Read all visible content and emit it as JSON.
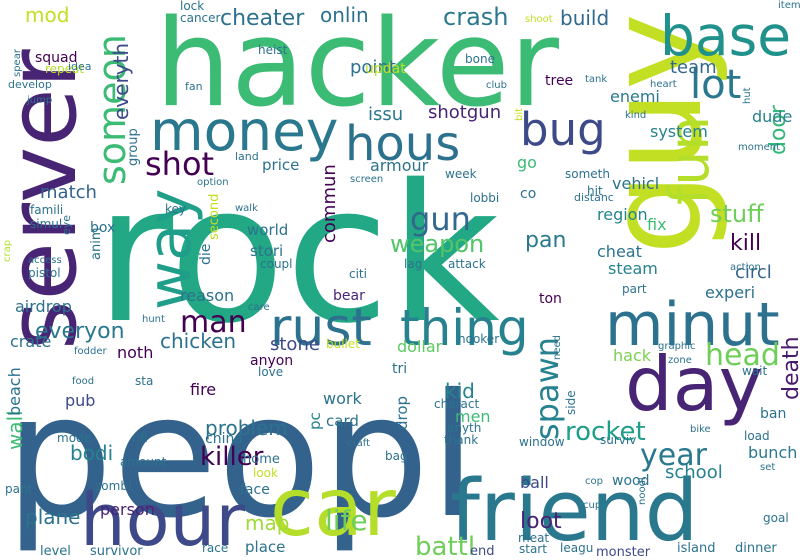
{
  "words": [
    {
      "text": "peopl",
      "color": "#33638d"
    },
    {
      "text": "rock",
      "color": "#22a884"
    },
    {
      "text": "hacker",
      "color": "#3cbb75"
    },
    {
      "text": "guy",
      "color": "#c2df23"
    },
    {
      "text": "server",
      "color": "#482475"
    },
    {
      "text": "car",
      "color": "#b5de2b"
    },
    {
      "text": "friend",
      "color": "#2a788e"
    },
    {
      "text": "hour",
      "color": "#3e4989"
    },
    {
      "text": "day",
      "color": "#482475"
    },
    {
      "text": "money",
      "color": "#2a788e"
    },
    {
      "text": "base",
      "color": "#21918c"
    },
    {
      "text": "minut",
      "color": "#2c728e"
    },
    {
      "text": "hous",
      "color": "#2c728e"
    },
    {
      "text": "bug",
      "color": "#3e4989"
    },
    {
      "text": "fun",
      "color": "#b5de2b"
    },
    {
      "text": "lot",
      "color": "#2a788e"
    },
    {
      "text": "way",
      "color": "#1f9e89"
    },
    {
      "text": "rust",
      "color": "#2c728e"
    },
    {
      "text": "thing",
      "color": "#26828e"
    },
    {
      "text": "someon",
      "color": "#3cbb75"
    },
    {
      "text": "shot",
      "color": "#440154"
    },
    {
      "text": "gun",
      "color": "#31688e"
    },
    {
      "text": "man",
      "color": "#440154"
    },
    {
      "text": "head",
      "color": "#6ece58"
    },
    {
      "text": "year",
      "color": "#2a788e"
    },
    {
      "text": "spawn",
      "color": "#26828e"
    },
    {
      "text": "life",
      "color": "#6ece58"
    },
    {
      "text": "weapon",
      "color": "#52c569"
    },
    {
      "text": "rocket",
      "color": "#1f9e89"
    },
    {
      "text": "killer",
      "color": "#440154"
    },
    {
      "text": "everyon",
      "color": "#2a788e"
    },
    {
      "text": "crash",
      "color": "#2a788e"
    },
    {
      "text": "cheater",
      "color": "#2c728e"
    },
    {
      "text": "onlin",
      "color": "#2c728e"
    },
    {
      "text": "build",
      "color": "#31688e"
    },
    {
      "text": "mod",
      "color": "#c2df23"
    },
    {
      "text": "everyth",
      "color": "#3e4989"
    },
    {
      "text": "stuff",
      "color": "#6ece58"
    },
    {
      "text": "kill",
      "color": "#440154"
    },
    {
      "text": "circl",
      "color": "#33638d"
    },
    {
      "text": "death",
      "color": "#481a6c"
    },
    {
      "text": "chicken",
      "color": "#2c728e"
    },
    {
      "text": "problem",
      "color": "#2c728e"
    },
    {
      "text": "battl",
      "color": "#6ece58"
    },
    {
      "text": "loot",
      "color": "#482475"
    },
    {
      "text": "map",
      "color": "#a0da39"
    },
    {
      "text": "match",
      "color": "#33638d"
    },
    {
      "text": "commun",
      "color": "#440154"
    },
    {
      "text": "pan",
      "color": "#2a788e"
    },
    {
      "text": "shotgun",
      "color": "#482475"
    },
    {
      "text": "school",
      "color": "#26828e"
    },
    {
      "text": "bunch",
      "color": "#2a788e"
    },
    {
      "text": "stone",
      "color": "#3e4989"
    },
    {
      "text": "bodi",
      "color": "#26828e"
    },
    {
      "text": "wall",
      "color": "#3cbb75"
    },
    {
      "text": "kid",
      "color": "#26828e"
    },
    {
      "text": "plane",
      "color": "#2c728e"
    },
    {
      "text": "door",
      "color": "#35b779"
    },
    {
      "text": "team",
      "color": "#31688e"
    },
    {
      "text": "point",
      "color": "#2c728e"
    },
    {
      "text": "issu",
      "color": "#2a788e"
    },
    {
      "text": "dude",
      "color": "#26828e"
    },
    {
      "text": "enemi",
      "color": "#2a788e"
    },
    {
      "text": "system",
      "color": "#26828e"
    },
    {
      "text": "armour",
      "color": "#2c728e"
    },
    {
      "text": "vehicl",
      "color": "#2c728e"
    },
    {
      "text": "cheat",
      "color": "#2c728e"
    },
    {
      "text": "steam",
      "color": "#26828e"
    },
    {
      "text": "stori",
      "color": "#2c728e"
    },
    {
      "text": "world",
      "color": "#2c728e"
    },
    {
      "text": "price",
      "color": "#2c728e"
    },
    {
      "text": "reason",
      "color": "#2c728e"
    },
    {
      "text": "airdrop",
      "color": "#2c728e"
    },
    {
      "text": "crate",
      "color": "#2c728e"
    },
    {
      "text": "noth",
      "color": "#440154"
    },
    {
      "text": "pub",
      "color": "#3e4989"
    },
    {
      "text": "person",
      "color": "#482475"
    },
    {
      "text": "dollar",
      "color": "#5ec962"
    },
    {
      "text": "hack",
      "color": "#7ad151"
    },
    {
      "text": "fire",
      "color": "#440154"
    },
    {
      "text": "work",
      "color": "#2c728e"
    },
    {
      "text": "card",
      "color": "#2c728e"
    },
    {
      "text": "pc",
      "color": "#26828e"
    },
    {
      "text": "men",
      "color": "#3cbb75"
    },
    {
      "text": "face",
      "color": "#2c728e"
    },
    {
      "text": "ball",
      "color": "#3e4989"
    },
    {
      "text": "fix",
      "color": "#3cbb75"
    },
    {
      "text": "experi",
      "color": "#2c728e"
    },
    {
      "text": "region",
      "color": "#26828e"
    },
    {
      "text": "beach",
      "color": "#2c728e"
    },
    {
      "text": "place",
      "color": "#2c728e"
    },
    {
      "text": "level",
      "color": "#2c728e"
    },
    {
      "text": "survivor",
      "color": "#2c728e"
    },
    {
      "text": "end",
      "color": "#3e4989"
    },
    {
      "text": "monster",
      "color": "#3e4989"
    },
    {
      "text": "island",
      "color": "#2c728e"
    },
    {
      "text": "dinner",
      "color": "#2c728e"
    },
    {
      "text": "drop",
      "color": "#2c728e"
    },
    {
      "text": "ban",
      "color": "#2c728e"
    },
    {
      "text": "wood",
      "color": "#2c728e"
    },
    {
      "text": "go",
      "color": "#3cbb75"
    },
    {
      "text": "bear",
      "color": "#482475"
    },
    {
      "text": "updat",
      "color": "#c2df23"
    },
    {
      "text": "die",
      "color": "#2c728e"
    },
    {
      "text": "tree",
      "color": "#440154"
    },
    {
      "text": "anyon",
      "color": "#440154"
    },
    {
      "text": "squad",
      "color": "#440154"
    },
    {
      "text": "box",
      "color": "#2c728e"
    },
    {
      "text": "group",
      "color": "#2c728e"
    },
    {
      "text": "china",
      "color": "#2c728e"
    },
    {
      "text": "home",
      "color": "#2c728e"
    },
    {
      "text": "co",
      "color": "#2c728e"
    },
    {
      "text": "ton",
      "color": "#440154"
    },
    {
      "text": "tri",
      "color": "#2c728e"
    },
    {
      "text": "second",
      "color": "#c2df23"
    },
    {
      "text": "anim",
      "color": "#2c728e"
    },
    {
      "text": "lock",
      "color": "#2c728e"
    },
    {
      "text": "cancer",
      "color": "#2c728e"
    },
    {
      "text": "shoot",
      "color": "#c2df23"
    },
    {
      "text": "item",
      "color": "#2c728e"
    },
    {
      "text": "heist",
      "color": "#2c728e"
    },
    {
      "text": "repeat",
      "color": "#b5de2b"
    },
    {
      "text": "idea",
      "color": "#2c728e"
    },
    {
      "text": "develop",
      "color": "#2c728e"
    },
    {
      "text": "spear",
      "color": "#2c728e"
    },
    {
      "text": "bone",
      "color": "#2c728e"
    },
    {
      "text": "tank",
      "color": "#2c728e"
    },
    {
      "text": "heart",
      "color": "#2c728e"
    },
    {
      "text": "hut",
      "color": "#2c728e"
    },
    {
      "text": "fan",
      "color": "#2c728e"
    },
    {
      "text": "jump",
      "color": "#2c728e"
    },
    {
      "text": "club",
      "color": "#2c728e"
    },
    {
      "text": "bit",
      "color": "#c2df23"
    },
    {
      "text": "kind",
      "color": "#2c728e"
    },
    {
      "text": "moment",
      "color": "#2c728e"
    },
    {
      "text": "land",
      "color": "#2c728e"
    },
    {
      "text": "screen",
      "color": "#2c728e"
    },
    {
      "text": "someth",
      "color": "#2c728e"
    },
    {
      "text": "week",
      "color": "#2c728e"
    },
    {
      "text": "lobbi",
      "color": "#2c728e"
    },
    {
      "text": "hit",
      "color": "#2c728e"
    },
    {
      "text": "distanc",
      "color": "#2c728e"
    },
    {
      "text": "option",
      "color": "#2c728e"
    },
    {
      "text": "key",
      "color": "#2c728e"
    },
    {
      "text": "walk",
      "color": "#2c728e"
    },
    {
      "text": "famili",
      "color": "#2c728e"
    },
    {
      "text": "simul",
      "color": "#2c728e"
    },
    {
      "text": "eye",
      "color": "#2c728e"
    },
    {
      "text": "coupl",
      "color": "#2c728e"
    },
    {
      "text": "lag",
      "color": "#2c728e"
    },
    {
      "text": "attack",
      "color": "#2c728e"
    },
    {
      "text": "citi",
      "color": "#2c728e"
    },
    {
      "text": "crap",
      "color": "#b5de2b"
    },
    {
      "text": "access",
      "color": "#2c728e"
    },
    {
      "text": "pistol",
      "color": "#2c728e"
    },
    {
      "text": "part",
      "color": "#2c728e"
    },
    {
      "text": "action",
      "color": "#2c728e"
    },
    {
      "text": "care",
      "color": "#2c728e"
    },
    {
      "text": "hunt",
      "color": "#2c728e"
    },
    {
      "text": "bullet",
      "color": "#c2df23"
    },
    {
      "text": "hooker",
      "color": "#2c728e"
    },
    {
      "text": "need",
      "color": "#2c728e"
    },
    {
      "text": "fodder",
      "color": "#2c728e"
    },
    {
      "text": "graphic",
      "color": "#2c728e"
    },
    {
      "text": "zone",
      "color": "#2c728e"
    },
    {
      "text": "food",
      "color": "#2c728e"
    },
    {
      "text": "sta",
      "color": "#2c728e"
    },
    {
      "text": "love",
      "color": "#2c728e"
    },
    {
      "text": "wait",
      "color": "#2c728e"
    },
    {
      "text": "charact",
      "color": "#2c728e"
    },
    {
      "text": "side",
      "color": "#2c728e"
    },
    {
      "text": "anyth",
      "color": "#2c728e"
    },
    {
      "text": "thank",
      "color": "#2c728e"
    },
    {
      "text": "mode",
      "color": "#2c728e"
    },
    {
      "text": "rifl",
      "color": "#2c728e"
    },
    {
      "text": "craft",
      "color": "#2c728e"
    },
    {
      "text": "load",
      "color": "#2c728e"
    },
    {
      "text": "bike",
      "color": "#2c728e"
    },
    {
      "text": "window",
      "color": "#2c728e"
    },
    {
      "text": "surviv",
      "color": "#2c728e"
    },
    {
      "text": "amount",
      "color": "#2c728e"
    },
    {
      "text": "zombi",
      "color": "#2c728e"
    },
    {
      "text": "look",
      "color": "#c2df23"
    },
    {
      "text": "bag",
      "color": "#2c728e"
    },
    {
      "text": "set",
      "color": "#2c728e"
    },
    {
      "text": "pant",
      "color": "#2c728e"
    },
    {
      "text": "cop",
      "color": "#2c728e"
    },
    {
      "text": "cup",
      "color": "#2c728e"
    },
    {
      "text": "noodl",
      "color": "#2c728e"
    },
    {
      "text": "goal",
      "color": "#2c728e"
    },
    {
      "text": "race",
      "color": "#2c728e"
    },
    {
      "text": "meat",
      "color": "#2c728e"
    },
    {
      "text": "start",
      "color": "#2c728e"
    },
    {
      "text": "leagu",
      "color": "#2c728e"
    }
  ]
}
